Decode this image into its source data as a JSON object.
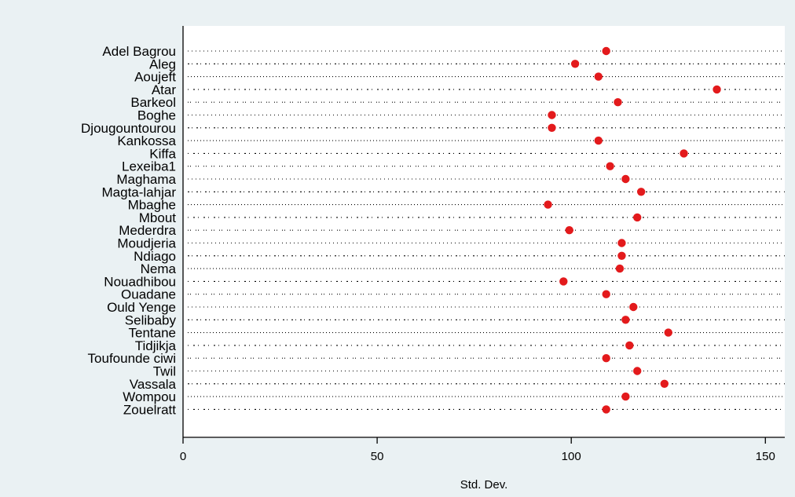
{
  "chart_data": {
    "type": "scatter",
    "subtype": "dot-plot",
    "title": "",
    "xlabel": "Std. Dev.",
    "ylabel": "",
    "xlim": [
      0,
      155
    ],
    "xticks": [
      0,
      50,
      100,
      150
    ],
    "marker_color": "#e31a1c",
    "grid": "dotted horizontal lines per category",
    "categories": [
      "Adel Bagrou",
      "Aleg",
      "Aoujeft",
      "Atar",
      "Barkeol",
      "Boghe",
      "Djougountourou",
      "Kankossa",
      "Kiffa",
      "Lexeiba1",
      "Maghama",
      "Magta-lahjar",
      "Mbaghe",
      "Mbout",
      "Mederdra",
      "Moudjeria",
      "Ndiago",
      "Nema",
      "Nouadhibou",
      "Ouadane",
      "Ould Yenge",
      "Selibaby",
      "Tentane",
      "Tidjikja",
      "Toufounde ciwi",
      "Twil",
      "Vassala",
      "Wompou",
      "Zouelratt"
    ],
    "values": [
      109,
      101,
      107,
      137.5,
      112,
      95,
      95,
      107,
      129,
      110,
      114,
      118,
      94,
      117,
      99.5,
      113,
      113,
      112.5,
      98,
      109,
      116,
      114,
      125,
      115,
      109,
      117,
      124,
      114,
      109
    ]
  }
}
